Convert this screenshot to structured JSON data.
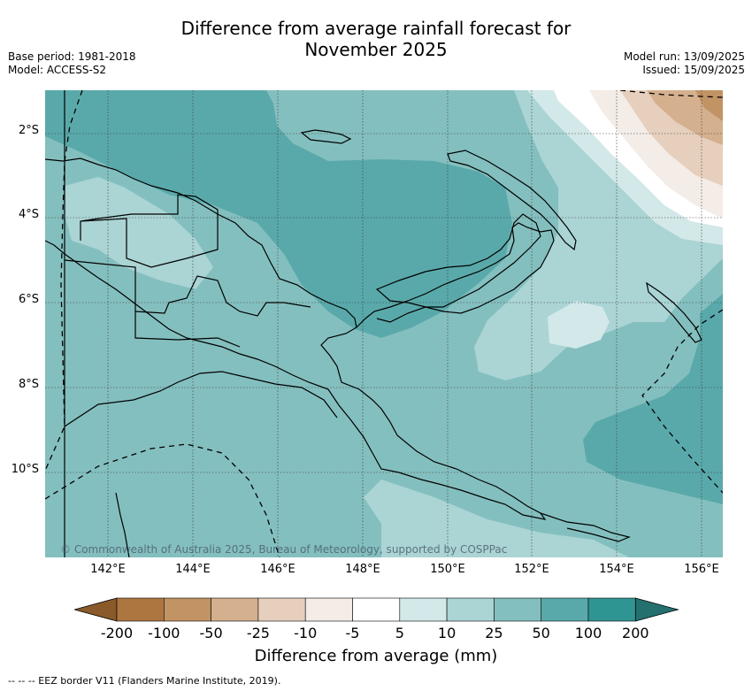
{
  "title_line1": "Difference from average rainfall forecast for",
  "title_line2": "November 2025",
  "base_period": "Base period: 1981-2018",
  "model": "Model: ACCESS-S2",
  "model_run": "Model run: 13/09/2025",
  "issued": "Issued: 15/09/2025",
  "copyright": "© Commonwealth of Australia 2025, Bureau of Meteorology, supported by COSPPac",
  "lat_labels": [
    "2°S",
    "4°S",
    "6°S",
    "8°S",
    "10°S"
  ],
  "lon_labels": [
    "142°E",
    "144°E",
    "146°E",
    "148°E",
    "150°E",
    "152°E",
    "154°E",
    "156°E"
  ],
  "colorbar": {
    "title": "Difference from average (mm)",
    "ticks": [
      "-200",
      "-100",
      "-50",
      "-25",
      "-10",
      "-5",
      "5",
      "10",
      "25",
      "50",
      "100",
      "200"
    ],
    "colors": [
      "#8a5a2a",
      "#ad7540",
      "#c29365",
      "#d5b08e",
      "#e6cfbc",
      "#f3ece7",
      "#ffffff",
      "#d3e8e8",
      "#abd4d4",
      "#84bfbf",
      "#5aa9aa",
      "#2f9593",
      "#23706f"
    ]
  },
  "footnote": "--  --  -- EEZ border V11 (Flanders Marine Institute, 2019)."
}
